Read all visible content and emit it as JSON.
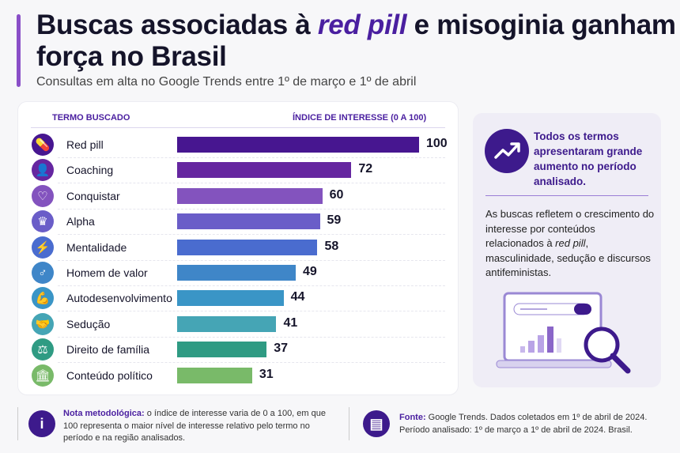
{
  "header": {
    "title_pre": "Buscas associadas à ",
    "title_em": "red pill",
    "title_post": " e misoginia ganham força no Brasil",
    "subtitle": "Consultas em alta no Google Trends entre 1º de março e 1º de abril"
  },
  "chart_data": {
    "type": "bar",
    "orientation": "horizontal",
    "col_term": "TERMO BUSCADO",
    "col_value": "ÍNDICE DE INTERESSE (0 A 100)",
    "xlim": [
      0,
      100
    ],
    "categories": [
      "Red pill",
      "Coaching",
      "Conquistar",
      "Alpha",
      "Mentalidade",
      "Homem de valor",
      "Autodesenvolvimento",
      "Sedução",
      "Direito de família",
      "Conteúdo político"
    ],
    "values": [
      100,
      72,
      60,
      59,
      58,
      49,
      44,
      41,
      37,
      31
    ],
    "colors": [
      "#471690",
      "#6526a0",
      "#8353be",
      "#6a5dc8",
      "#4a6ccf",
      "#3f86c8",
      "#3a95c6",
      "#45a5b5",
      "#2f9b83",
      "#79ba69"
    ],
    "icons": [
      "pill-icon",
      "person-icon",
      "heart-icon",
      "crown-icon",
      "lightning-icon",
      "male-symbol-icon",
      "flexed-arm-icon",
      "handshake-icon",
      "scales-icon",
      "institution-icon"
    ],
    "icon_glyphs": [
      "💊",
      "👤",
      "♡",
      "♛",
      "⚡",
      "♂",
      "💪",
      "🤝",
      "⚖",
      "🏛"
    ]
  },
  "panel": {
    "highlight": "Todos os termos apresentaram grande aumento no período analisado.",
    "text_pre": "As buscas refletem o crescimento do interesse por conteúdos relacionados à ",
    "text_em": "red pill",
    "text_post": ", masculinidade, sedução e discursos antifeministas."
  },
  "footer": {
    "note_label": "Nota metodológica:",
    "note_text": " o índice de interesse varia de 0 a 100, em que 100 representa o maior nível de interesse relativo pelo termo no período e na região analisados.",
    "source_label": "Fonte:",
    "source_text": "  Google Trends. Dados coletados em 1º de abril de 2024.",
    "source_line2": "Período analisado: 1º de março a 1º de abril de 2024. Brasil."
  }
}
